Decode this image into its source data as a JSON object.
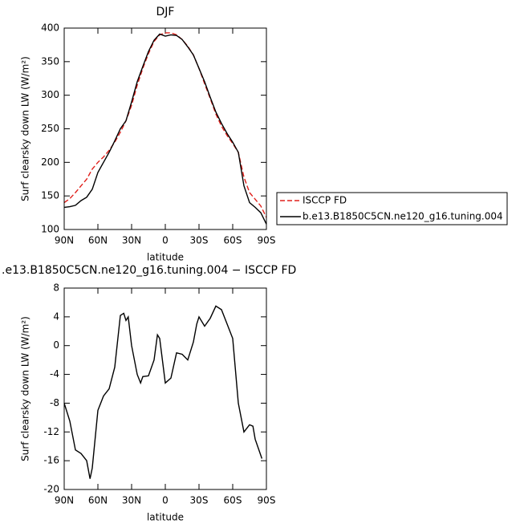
{
  "chart_data": [
    {
      "type": "line",
      "title": "DJF",
      "x_label": "latitude",
      "y_label": "Surf clearsky down LW (W/m²)",
      "x": [
        90,
        85,
        80,
        75,
        70,
        65,
        60,
        55,
        50,
        45,
        40,
        35,
        30,
        25,
        20,
        15,
        10,
        5,
        0,
        -5,
        -10,
        -15,
        -20,
        -25,
        -30,
        -35,
        -40,
        -45,
        -50,
        -55,
        -60,
        -65,
        -70,
        -75,
        -80,
        -85,
        -90
      ],
      "series": [
        {
          "name": "ISCCP FD",
          "color": "#e0201b",
          "style": "dashed",
          "values": [
            140,
            146,
            155,
            165,
            175,
            190,
            200,
            208,
            218,
            230,
            245,
            262,
            285,
            315,
            340,
            362,
            380,
            390,
            393,
            393,
            390,
            383,
            373,
            360,
            340,
            317,
            295,
            272,
            254,
            240,
            228,
            215,
            178,
            155,
            145,
            135,
            118
          ]
        },
        {
          "name": "b.e13.B1850C5CN.ne120_g16.tuning.004",
          "color": "#000000",
          "style": "solid",
          "values": [
            133,
            134,
            136,
            143,
            148,
            160,
            185,
            200,
            215,
            232,
            250,
            262,
            290,
            320,
            343,
            365,
            382,
            391,
            388,
            390,
            389,
            383,
            372,
            360,
            340,
            320,
            297,
            275,
            258,
            243,
            230,
            215,
            165,
            140,
            133,
            125,
            108
          ]
        }
      ],
      "xlim": [
        90,
        -90
      ],
      "xticks": [
        {
          "value": 90,
          "label": "90N"
        },
        {
          "value": 60,
          "label": "60N"
        },
        {
          "value": 30,
          "label": "30N"
        },
        0,
        {
          "value": -30,
          "label": "30S"
        },
        {
          "value": -60,
          "label": "60S"
        },
        {
          "value": -90,
          "label": "90S"
        }
      ],
      "ylim": [
        100,
        400
      ],
      "yticks": [
        100,
        150,
        200,
        250,
        300,
        350,
        400
      ],
      "legend": "right"
    },
    {
      "type": "line",
      "title": ".e13.B1850C5CN.ne120_g16.tuning.004 − ISCCP FD",
      "x_label": "latitude",
      "y_label": "Surf clearsky down LW (W/m²)",
      "x": [
        90,
        85,
        80,
        75,
        70,
        67,
        65,
        60,
        55,
        50,
        45,
        40,
        37,
        35,
        33,
        30,
        25,
        22,
        20,
        15,
        10,
        7,
        5,
        0,
        -5,
        -10,
        -15,
        -20,
        -25,
        -28,
        -30,
        -35,
        -40,
        -45,
        -50,
        -55,
        -60,
        -65,
        -70,
        -75,
        -78,
        -80,
        -86
      ],
      "series": [
        {
          "name": "difference",
          "color": "#000000",
          "style": "solid",
          "values": [
            -8,
            -10.5,
            -14.5,
            -15,
            -16,
            -18.5,
            -17,
            -9,
            -7,
            -6,
            -3,
            4.2,
            4.5,
            3.5,
            4,
            0,
            -4,
            -5.2,
            -4.3,
            -4.2,
            -2,
            1.5,
            1,
            -5.2,
            -4.5,
            -1,
            -1.2,
            -2,
            0.5,
            3,
            4,
            2.7,
            3.8,
            5.5,
            5,
            3,
            1,
            -8,
            -12,
            -11,
            -11.2,
            -13,
            -15.7
          ]
        }
      ],
      "xlim": [
        90,
        -90
      ],
      "xticks": [
        {
          "value": 90,
          "label": "90N"
        },
        {
          "value": 60,
          "label": "60N"
        },
        {
          "value": 30,
          "label": "30N"
        },
        0,
        {
          "value": -30,
          "label": "30S"
        },
        {
          "value": -60,
          "label": "60S"
        },
        {
          "value": -90,
          "label": "90S"
        }
      ],
      "ylim": [
        -20,
        8
      ],
      "yticks": [
        -20,
        -16,
        -12,
        -8,
        -4,
        0,
        4,
        8
      ]
    }
  ]
}
